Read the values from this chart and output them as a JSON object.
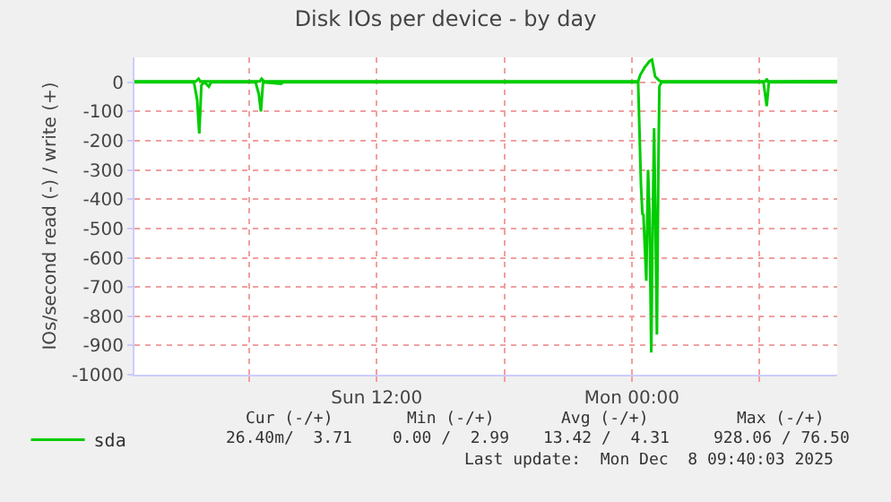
{
  "chart_data": {
    "type": "line",
    "title": "Disk IOs per device - by day",
    "ylabel": "IOs/second read (-) / write (+)",
    "xlim": [
      "2025-12-07T00:36",
      "2025-12-08T09:40"
    ],
    "xticks": [
      {
        "value": "2025-12-07T06:00",
        "label": null
      },
      {
        "value": "2025-12-07T12:00",
        "label": "Sun 12:00"
      },
      {
        "value": "2025-12-07T18:00",
        "label": null
      },
      {
        "value": "2025-12-08T00:00",
        "label": "Mon 00:00"
      },
      {
        "value": "2025-12-08T06:00",
        "label": null
      }
    ],
    "ylim": [
      -1000,
      85
    ],
    "yticks": [
      -1000,
      -900,
      -800,
      -700,
      -600,
      -500,
      -400,
      -300,
      -200,
      -100,
      0
    ],
    "grid": true,
    "legend": "bottom left",
    "marker": "none",
    "line_style": "solid",
    "series": [
      {
        "name": "sda",
        "color": "#00cc00",
        "x": [
          "2025-12-07T00:36",
          "2025-12-07T03:24",
          "2025-12-07T03:33",
          "2025-12-07T03:39",
          "2025-12-07T03:45",
          "2025-12-07T03:54",
          "2025-12-07T04:06",
          "2025-12-07T04:12",
          "2025-12-07T06:18",
          "2025-12-07T06:27",
          "2025-12-07T06:33",
          "2025-12-07T06:39",
          "2025-12-07T07:30",
          "2025-12-07T07:36",
          "2025-12-08T00:18",
          "2025-12-08T00:26",
          "2025-12-08T00:30",
          "2025-12-08T00:33",
          "2025-12-08T00:41",
          "2025-12-08T00:46",
          "2025-12-08T00:50",
          "2025-12-08T00:55",
          "2025-12-08T00:59",
          "2025-12-08T01:03",
          "2025-12-08T01:07",
          "2025-12-08T01:11",
          "2025-12-08T01:15",
          "2025-12-08T01:18",
          "2025-12-08T01:24",
          "2025-12-08T06:12",
          "2025-12-08T06:21",
          "2025-12-08T06:27",
          "2025-12-08T09:40"
        ],
        "values": [
          0,
          0,
          -60,
          -175,
          -10,
          0,
          -15,
          0,
          0,
          -40,
          -100,
          0,
          -5,
          0,
          0,
          -352,
          -450,
          -454,
          -679,
          -300,
          -444,
          -924,
          -500,
          -157,
          -500,
          -863,
          -300,
          -14,
          0,
          0,
          -82,
          0,
          0
        ]
      },
      {
        "color": "#00cc00",
        "x": [
          "2025-12-07T00:36",
          "2025-12-07T03:30",
          "2025-12-07T03:37",
          "2025-12-07T03:42",
          "2025-12-07T06:30",
          "2025-12-07T06:35",
          "2025-12-07T06:42",
          "2025-12-08T00:18",
          "2025-12-08T00:24",
          "2025-12-08T00:36",
          "2025-12-08T00:50",
          "2025-12-08T00:57",
          "2025-12-08T01:06",
          "2025-12-08T01:18",
          "2025-12-08T01:24",
          "2025-12-08T06:18",
          "2025-12-08T06:21",
          "2025-12-08T06:24",
          "2025-12-08T09:40"
        ],
        "values": [
          3,
          3,
          12,
          3,
          3,
          12,
          3,
          3,
          25,
          50,
          72,
          77,
          20,
          5,
          3,
          3,
          12,
          3,
          4
        ]
      }
    ],
    "annotations": [
      "Cur (-/+)",
      "Min (-/+)",
      "Avg (-/+)",
      "Max (-/+)",
      "26.40m/  3.71",
      "0.00 /  2.99",
      "13.42 /  4.31",
      "928.06 / 76.50",
      "Last update:  Mon Dec  8 09:40:03 2025"
    ]
  }
}
